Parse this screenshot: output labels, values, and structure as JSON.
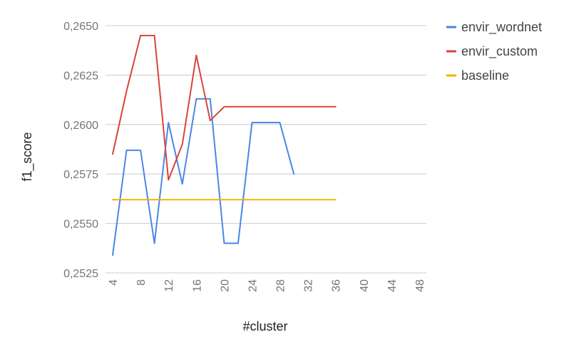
{
  "chart_data": {
    "type": "line",
    "title": "",
    "xlabel": "#cluster",
    "ylabel": "f1_score",
    "xlim": [
      4,
      48
    ],
    "ylim": [
      0.2525,
      0.265
    ],
    "x_ticks": [
      4,
      8,
      12,
      16,
      20,
      24,
      28,
      32,
      36,
      40,
      44,
      48
    ],
    "y_ticks": [
      0.2525,
      0.255,
      0.2575,
      0.26,
      0.2625,
      0.265
    ],
    "y_tick_labels": [
      "0,2525",
      "0,2550",
      "0,2575",
      "0,2600",
      "0,2625",
      "0,2650"
    ],
    "grid": true,
    "legend_position": "right-top",
    "series": [
      {
        "name": "envir_wordnet",
        "color": "#4a86e8",
        "points": [
          [
            4,
            0.2534
          ],
          [
            6,
            0.2587
          ],
          [
            8,
            0.2587
          ],
          [
            10,
            0.254
          ],
          [
            12,
            0.2601
          ],
          [
            14,
            0.257
          ],
          [
            16,
            0.2613
          ],
          [
            18,
            0.2613
          ],
          [
            20,
            0.254
          ],
          [
            22,
            0.254
          ],
          [
            24,
            0.2601
          ],
          [
            26,
            0.2601
          ],
          [
            28,
            0.2601
          ],
          [
            30,
            0.2575
          ]
        ]
      },
      {
        "name": "envir_custom",
        "color": "#d9443a",
        "points": [
          [
            4,
            0.2585
          ],
          [
            6,
            0.2617
          ],
          [
            8,
            0.2645
          ],
          [
            10,
            0.2645
          ],
          [
            12,
            0.2572
          ],
          [
            14,
            0.259
          ],
          [
            16,
            0.2635
          ],
          [
            18,
            0.2602
          ],
          [
            20,
            0.2609
          ],
          [
            22,
            0.2609
          ],
          [
            24,
            0.2609
          ],
          [
            26,
            0.2609
          ],
          [
            28,
            0.2609
          ],
          [
            30,
            0.2609
          ],
          [
            32,
            0.2609
          ],
          [
            34,
            0.2609
          ],
          [
            36,
            0.2609
          ]
        ]
      },
      {
        "name": "baseline",
        "color": "#f1b400",
        "points": [
          [
            4,
            0.2562
          ],
          [
            36,
            0.2562
          ]
        ]
      }
    ]
  }
}
